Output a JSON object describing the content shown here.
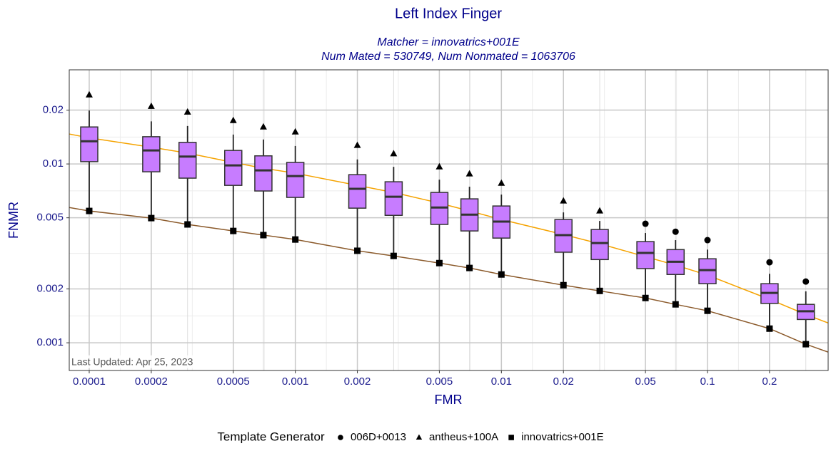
{
  "chart_data": {
    "type": "box",
    "title": "Left Index Finger",
    "subtitle": [
      "Matcher = innovatrics+001E",
      "Num Mated = 530749, Num Nonmated = 1063706"
    ],
    "xlabel": "FMR",
    "ylabel": "FNMR",
    "annotation": "Last Updated: Apr 25, 2023",
    "legend_title": "Template Generator",
    "log_x": true,
    "log_y": true,
    "grid": true,
    "legend_position": "bottom",
    "box_color": "#c77cff",
    "xlim": [
      8e-05,
      0.385
    ],
    "ylim": [
      0.0007,
      0.0336
    ],
    "xticks": [
      0.0001,
      0.0002,
      0.0005,
      0.001,
      0.002,
      0.005,
      0.01,
      0.02,
      0.05,
      0.1,
      0.2
    ],
    "yticks": [
      0.001,
      0.002,
      0.005,
      0.01,
      0.02
    ],
    "x": [
      0.0001,
      0.0002,
      0.0003,
      0.0005,
      0.0007,
      0.001,
      0.002,
      0.003,
      0.005,
      0.007,
      0.01,
      0.02,
      0.03,
      0.05,
      0.07,
      0.1,
      0.2,
      0.3
    ],
    "boxes": {
      "whisker_low": [
        0.00546,
        0.00498,
        0.00459,
        0.00422,
        0.004,
        0.00378,
        0.00327,
        0.00306,
        0.00279,
        0.00262,
        0.00241,
        0.0021,
        0.00195,
        0.00178,
        0.00164,
        0.00151,
        0.0012,
        0.000982
      ],
      "q1": [
        0.0103,
        0.00904,
        0.00833,
        0.00759,
        0.00706,
        0.0065,
        0.00566,
        0.00516,
        0.00459,
        0.00422,
        0.00385,
        0.00321,
        0.00292,
        0.0026,
        0.00241,
        0.00214,
        0.00166,
        0.00135
      ],
      "median": [
        0.0134,
        0.0119,
        0.011,
        0.00982,
        0.00921,
        0.00856,
        0.00726,
        0.00656,
        0.00571,
        0.00521,
        0.00476,
        0.004,
        0.00361,
        0.00318,
        0.00284,
        0.00255,
        0.0019,
        0.0015
      ],
      "q3": [
        0.0161,
        0.0142,
        0.0132,
        0.0119,
        0.0111,
        0.0102,
        0.00871,
        0.00795,
        0.00693,
        0.00638,
        0.00582,
        0.00489,
        0.0043,
        0.00368,
        0.00332,
        0.00295,
        0.00214,
        0.00164
      ],
      "whisker_high": [
        0.0199,
        0.0173,
        0.0163,
        0.0146,
        0.0137,
        0.0126,
        0.0106,
        0.00964,
        0.00817,
        0.00746,
        0.00674,
        0.00536,
        0.0048,
        0.00411,
        0.00375,
        0.00332,
        0.00243,
        0.00194
      ]
    },
    "series": [
      {
        "name": "006D+0013",
        "marker": "circle",
        "color": "#000000",
        "values": [
          null,
          null,
          null,
          null,
          null,
          null,
          null,
          null,
          null,
          null,
          null,
          null,
          null,
          0.00463,
          0.00418,
          0.00375,
          0.00282,
          0.0022
        ]
      },
      {
        "name": "antheus+100A",
        "marker": "triangle",
        "color": "#000000",
        "values": [
          0.02435,
          0.021,
          0.0195,
          0.0175,
          0.0161,
          0.0151,
          0.0127,
          0.0114,
          0.00964,
          0.0088,
          0.0078,
          0.00621,
          0.00546,
          null,
          null,
          null,
          null,
          null
        ]
      },
      {
        "name": "innovatrics+001E",
        "marker": "square",
        "color": "#000000",
        "values": [
          0.00546,
          0.00498,
          0.00459,
          0.00422,
          0.004,
          0.00378,
          0.00327,
          0.00306,
          0.00279,
          0.00262,
          0.00241,
          0.0021,
          0.00195,
          0.00178,
          0.00164,
          0.00151,
          0.0012,
          0.000982
        ]
      }
    ],
    "lines": [
      {
        "color": "#f5a300",
        "x": [
          8e-05,
          0.0001,
          0.0002,
          0.0003,
          0.0005,
          0.0007,
          0.001,
          0.002,
          0.003,
          0.005,
          0.007,
          0.01,
          0.02,
          0.03,
          0.05,
          0.07,
          0.1,
          0.2,
          0.3,
          0.385
        ],
        "values": [
          0.0147,
          0.014,
          0.0124,
          0.0115,
          0.0102,
          0.00946,
          0.00888,
          0.00759,
          0.00693,
          0.00604,
          0.00546,
          0.00489,
          0.00403,
          0.00358,
          0.00303,
          0.00272,
          0.00239,
          0.00175,
          0.00144,
          0.00129
        ]
      },
      {
        "color": "#8b5a2b",
        "x": [
          8e-05,
          0.0001,
          0.0002,
          0.0003,
          0.0005,
          0.0007,
          0.001,
          0.002,
          0.003,
          0.005,
          0.007,
          0.01,
          0.02,
          0.03,
          0.05,
          0.07,
          0.1,
          0.2,
          0.3,
          0.385
        ],
        "values": [
          0.00571,
          0.00546,
          0.00498,
          0.00459,
          0.00422,
          0.004,
          0.00378,
          0.00327,
          0.00306,
          0.00279,
          0.00262,
          0.00241,
          0.0021,
          0.00195,
          0.00178,
          0.00164,
          0.00151,
          0.0012,
          0.000982,
          0.000887
        ]
      }
    ]
  }
}
